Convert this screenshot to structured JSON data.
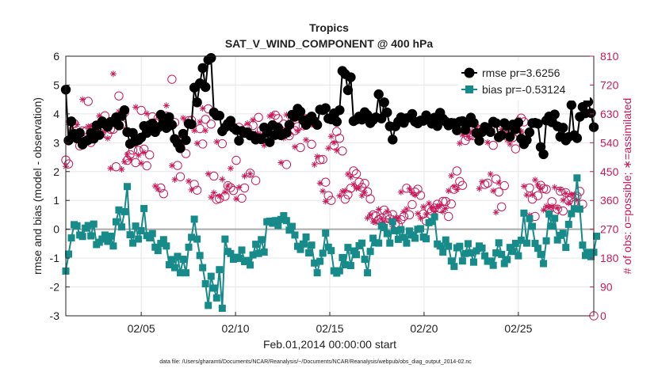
{
  "chart_data": {
    "type": "line",
    "title": "Tropics",
    "subtitle": "SAT_V_WIND_COMPONENT @ 400 hPa",
    "xlabel": "Feb.01,2014 00:00:00 start",
    "ylabel": "rmse and bias (model - observation)",
    "ylabel_right": "# of obs: o=possible; ∗=assimilated",
    "footnote": "data file: /Users/gharamti/Documents/NCAR/Reanalysis/~/Documents/NCAR/Reanalysis/webpub/obs_diag_output_2014-02.nc",
    "xlim": [
      1.0,
      29.0
    ],
    "ylim": [
      -3,
      6
    ],
    "ylim_right": [
      0,
      810
    ],
    "xticks": [
      5,
      10,
      15,
      20,
      25
    ],
    "xtick_labels": [
      "02/05",
      "02/10",
      "02/15",
      "02/20",
      "02/25"
    ],
    "yticks": [
      -3,
      -2,
      -1,
      0,
      1,
      2,
      3,
      4,
      5,
      6
    ],
    "yticks_right": [
      0,
      90,
      180,
      270,
      360,
      450,
      540,
      630,
      720,
      810
    ],
    "grid": true,
    "legend_position": "top-right",
    "colors": {
      "rmse": "#000000",
      "bias": "#178a8a",
      "obs": "#c8195a",
      "zero_line": "#aaaaaa"
    },
    "series": [
      {
        "name": "rmse pr=3.6256",
        "values": [
          4.84,
          3.08,
          3.74,
          3.31,
          3.15,
          3.34,
          2.94,
          3.05,
          3.09,
          3.34,
          3.14,
          3.6,
          3.27,
          3.74,
          3.64,
          3.55,
          3.72,
          3.72,
          3.88,
          3.6,
          3.93,
          4.13,
          3.37,
          2.96,
          3.34,
          3.05,
          3.09,
          3.18,
          3.58,
          3.34,
          3.61,
          3.67,
          3.37,
          3.52,
          3.97,
          3.72,
          3.51,
          3.89,
          3.62,
          3.13,
          2.98,
          2.81,
          3.31,
          3.09,
          3.66,
          3.64,
          4.91,
          4.4,
          5.06,
          5.59,
          4.93,
          5.87,
          5.94,
          4.05,
          3.94,
          3.94,
          3.4,
          3.53,
          3.66,
          3.76,
          3.52,
          3.44,
          3.07,
          3.41,
          3.34,
          3.36,
          3.25,
          3.24,
          3.11,
          3.15,
          3.12,
          3.53,
          3.35,
          3.02,
          3.61,
          3.27,
          3.52,
          3.26,
          3.3,
          3.35,
          3.62,
          3.97,
          3.9,
          4.18,
          4.08,
          3.78,
          3.62,
          3.82,
          3.91,
          3.74,
          3.62,
          4.15,
          4.13,
          4.2,
          3.84,
          3.81,
          4.02,
          3.73,
          4.13,
          5.49,
          5.38,
          4.82,
          5.27,
          3.75,
          3.8,
          3.91,
          3.8,
          4.06,
          3.96,
          3.68,
          3.79,
          3.88,
          4.68,
          3.84,
          4.4,
          4.05,
          3.57,
          3.11,
          3.57,
          3.73,
          3.88,
          3.69,
          3.85,
          3.88,
          4.0,
          3.73,
          3.67,
          3.77,
          3.76,
          3.95,
          3.81,
          3.66,
          3.87,
          3.58,
          4.04,
          3.83,
          3.73,
          3.6,
          3.69,
          3.68,
          3.43,
          3.73,
          3.75,
          3.45,
          3.68,
          3.87,
          3.69,
          3.34,
          3.07,
          3.37,
          3.55,
          3.51,
          3.37,
          3.73,
          3.68,
          3.19,
          3.26,
          3.68,
          3.58,
          3.21,
          3.63,
          3.47,
          3.7,
          3.14,
          2.95,
          3.09,
          3.36,
          3.68,
          3.69,
          3.66,
          2.85,
          2.6,
          3.77,
          3.91,
          3.71,
          3.98,
          3.57,
          3.21,
          3.52,
          3.08,
          3.2,
          4.31,
          3.26,
          3.16,
          3.9,
          4.24,
          4.02,
          4.42,
          4.03,
          3.54
        ],
        "obs_possible": [
          486,
          474,
          606,
          600,
          556,
          530,
          577,
          574,
          669,
          541,
          589,
          586,
          571,
          576,
          624,
          566,
          582,
          582,
          465,
          686,
          597,
          634,
          485,
          503,
          517,
          478,
          516,
          641,
          520,
          468,
          502,
          621,
          602,
          616,
          399,
          381,
          623,
          605,
          738,
          603,
          469,
          434,
          545,
          506,
          609,
          610,
          410,
          392,
          584,
          536,
          613,
          646,
          598,
          436,
          363,
          366,
          537,
          373,
          406,
          400,
          391,
          485,
          588,
          367,
          399,
          586,
          445,
          594,
          422,
          619,
          579,
          574,
          557,
          541,
          559,
          626,
          615,
          578,
          598,
          472,
          562,
          617,
          578,
          590,
          525,
          593,
          615,
          615,
          535,
          601,
          597,
          487,
          488,
          417,
          375,
          360,
          532,
          575,
          554,
          514,
          364,
          378,
          398,
          452,
          443,
          417,
          401,
          413,
          387,
          365,
          315,
          311,
          300,
          305,
          330,
          315,
          302,
          316,
          287,
          284,
          300,
          310,
          398,
          315,
          347,
          386,
          395,
          376,
          318,
          296,
          334,
          327,
          336,
          348,
          335,
          357,
          357,
          310,
          349,
          395,
          452,
          419,
          407,
          547,
          560,
          564,
          562,
          585,
          579,
          575,
          410,
          414,
          585,
          532,
          427,
          386,
          340,
          406,
          587,
          579,
          556,
          521,
          572,
          617,
          605,
          562,
          399,
          364,
          310,
          375,
          407,
          397,
          395,
          331,
          356,
          323,
          333,
          389,
          327,
          384,
          359,
          370,
          355,
          373,
          388,
          348
        ],
        "obs_assimilated": [
          466,
          603,
          580,
          554,
          596,
          573,
          675,
          542,
          591,
          591,
          570,
          568,
          624,
          563,
          580,
          554,
          460,
          755,
          609,
          637,
          457,
          481,
          504,
          488,
          535,
          651,
          501,
          476,
          510,
          631,
          588,
          605,
          405,
          395,
          613,
          608,
          656,
          585,
          469,
          425,
          550,
          535,
          617,
          605,
          420,
          393,
          578,
          538,
          605,
          647,
          578,
          443,
          370,
          384,
          543,
          373,
          426,
          386,
          405,
          460,
          580,
          365,
          401,
          571,
          436,
          600,
          443,
          611,
          569,
          566,
          561,
          532,
          546,
          623,
          628,
          574,
          582,
          478,
          554,
          627,
          566,
          601,
          527,
          577,
          611,
          618,
          549,
          596,
          598,
          472,
          497,
          414,
          389,
          357,
          523,
          560,
          540,
          516,
          374,
          388,
          390,
          442,
          433,
          410,
          398,
          399,
          375,
          385,
          305,
          315,
          294,
          291,
          332,
          302,
          291,
          326,
          296,
          278,
          306,
          304,
          386,
          325,
          333,
          396,
          384,
          377,
          319,
          304,
          340,
          317,
          351,
          336,
          325,
          342,
          343,
          325,
          335,
          390,
          437,
          403,
          394,
          538,
          565,
          572,
          560,
          575,
          567,
          587,
          397,
          418,
          591,
          541,
          442,
          390,
          323,
          415,
          582,
          565,
          549,
          536,
          579,
          603,
          613,
          576,
          404,
          377,
          314,
          378,
          424,
          408,
          397,
          330,
          342,
          337,
          342,
          401,
          337,
          394,
          361,
          382,
          352,
          378,
          379,
          361
        ]
      },
      {
        "name": "bias pr=-0.53124",
        "values": [
          -1.45,
          -0.86,
          -0.3,
          0.16,
          0.12,
          -0.2,
          -0.25,
          0.04,
          0.13,
          -0.23,
          0.18,
          -0.53,
          -0.45,
          -0.34,
          -0.2,
          -0.42,
          -0.24,
          -0.58,
          0.26,
          0.67,
          0.08,
          0.61,
          1.48,
          -0.19,
          -0.48,
          0.11,
          -0.34,
          -0.05,
          0.72,
          -0.22,
          -0.3,
          -0.15,
          -0.62,
          -0.74,
          -0.49,
          -0.36,
          -0.58,
          -1.23,
          -1.05,
          -1.33,
          -0.94,
          -1.51,
          -1.04,
          -1.51,
          -0.62,
          -0.28,
          0.35,
          -0.34,
          -0.91,
          -1.33,
          -1.89,
          -2.64,
          -1.63,
          -2.04,
          -2.38,
          -1.4,
          -2.74,
          -0.34,
          -0.77,
          -0.84,
          -1.04,
          -0.97,
          -1.01,
          -0.72,
          -1.12,
          -1.08,
          -1.24,
          -0.89,
          -0.52,
          -0.84,
          -0.36,
          -0.79,
          0.26,
          0.28,
          0.21,
          0.3,
          0.13,
          0.34,
          0.47,
          0.3,
          -0.03,
          0.1,
          -0.2,
          -0.59,
          -0.7,
          -0.51,
          -0.27,
          -0.82,
          -0.55,
          -1.17,
          -1.51,
          -1.11,
          -0.83,
          -0.13,
          -0.62,
          -0.74,
          -1.44,
          -1.52,
          -1.44,
          -0.98,
          -1.23,
          -0.63,
          -1.26,
          -0.75,
          -0.88,
          -0.57,
          -0.48,
          -1.04,
          -1.51,
          -0.77,
          -0.31,
          -0.47,
          -0.48,
          0.12,
          0.06,
          -0.15,
          -0.48,
          0.26,
          -0.05,
          -0.35,
          -0.01,
          -0.28,
          -0.48,
          -0.06,
          -0.2,
          -0.31,
          0.0,
          0.02,
          -0.27,
          -0.33,
          0.23,
          0.27,
          0.43,
          -0.51,
          -0.58,
          -0.79,
          -0.37,
          -0.59,
          -1.1,
          -1.29,
          -0.64,
          -0.59,
          -1.1,
          -0.84,
          -0.5,
          -0.82,
          -1.14,
          -0.75,
          -0.58,
          -0.65,
          -0.92,
          -1.11,
          -1.1,
          -1.25,
          -0.82,
          -0.47,
          -0.87,
          -1.19,
          -1.05,
          -0.63,
          -0.77,
          -0.49,
          -0.92,
          -0.38,
          0.56,
          -0.48,
          0.37,
          0.1,
          -0.49,
          -0.66,
          -0.87,
          -1.19,
          -0.4,
          0.53,
          0.11,
          0.38,
          -0.37,
          -0.21,
          -0.14,
          -0.63,
          0.17,
          0.54,
          0.71,
          1.78,
          0.7,
          -0.55,
          -0.91,
          -0.8,
          -0.95,
          -0.8,
          -0.24
        ]
      }
    ]
  }
}
